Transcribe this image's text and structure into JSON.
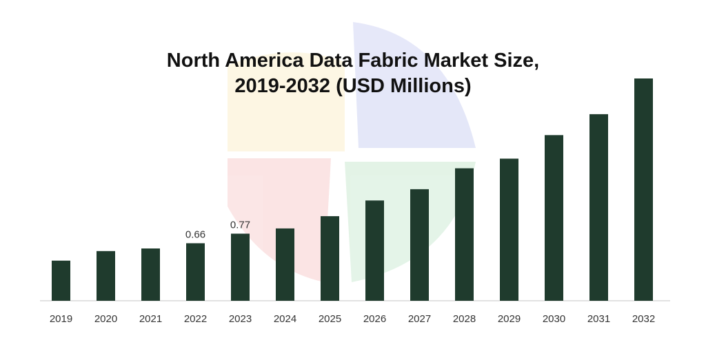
{
  "chart_data": {
    "type": "bar",
    "title_lines": [
      "North America Data Fabric Market Size,",
      "2019-2032 (USD Millions)"
    ],
    "categories": [
      "2019",
      "2020",
      "2021",
      "2022",
      "2023",
      "2024",
      "2025",
      "2026",
      "2027",
      "2028",
      "2029",
      "2030",
      "2031",
      "2032"
    ],
    "values": [
      0.46,
      0.57,
      0.6,
      0.66,
      0.77,
      0.83,
      0.97,
      1.15,
      1.28,
      1.52,
      1.63,
      1.9,
      2.14,
      2.55
    ],
    "data_labels": [
      {
        "index": 3,
        "text": "0.66"
      },
      {
        "index": 4,
        "text": "0.77"
      }
    ],
    "xlabel": "",
    "ylabel": "",
    "ylim": [
      0,
      2.7
    ],
    "grid": false,
    "legend": "none",
    "bar_color": "#1f3b2d",
    "baseline_color": "#d9d9d9",
    "tick_label_color": "#333333"
  }
}
